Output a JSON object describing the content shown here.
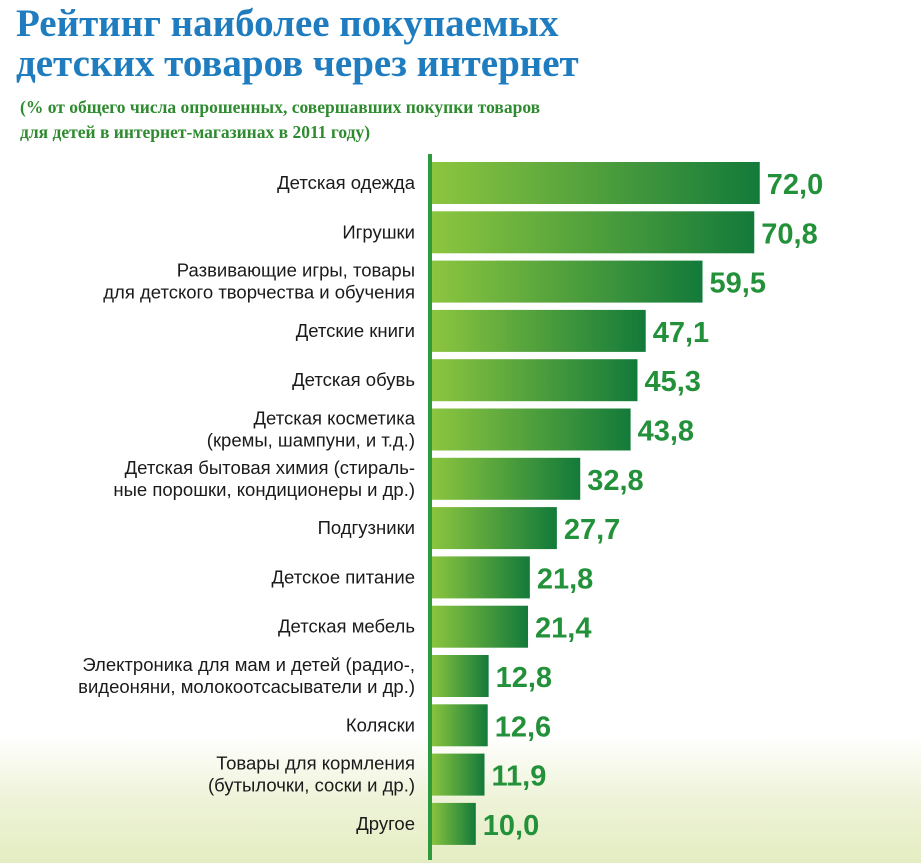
{
  "chart_data": {
    "type": "bar",
    "orientation": "horizontal",
    "title": "Рейтинг наиболее покупаемых детских товаров через интернет",
    "title_lines": [
      "Рейтинг наиболее покупаемых",
      "детских товаров через интернет"
    ],
    "subtitle_lines": [
      "(% от общего числа опрошенных, совершавших покупки товаров",
      "для детей в интернет-магазинах в 2011 году)"
    ],
    "categories": [
      [
        "Детская одежда"
      ],
      [
        "Игрушки"
      ],
      [
        "Развивающие игры, товары",
        "для детского творчества и обучения"
      ],
      [
        "Детские книги"
      ],
      [
        "Детская обувь"
      ],
      [
        "Детская косметика",
        "(кремы, шампуни,  и т.д.)"
      ],
      [
        "Детская бытовая химия (стираль-",
        "ные порошки, кондиционеры и др.)"
      ],
      [
        "Подгузники"
      ],
      [
        "Детское питание"
      ],
      [
        "Детская мебель"
      ],
      [
        "Электроника для мам и детей (радио-,",
        "видеоняни, молокоотсасыватели и др.)"
      ],
      [
        "Коляски"
      ],
      [
        "Товары для кормления",
        "(бутылочки, соски и др.)"
      ],
      [
        "Другое"
      ]
    ],
    "values": [
      72.0,
      70.8,
      59.5,
      47.1,
      45.3,
      43.8,
      32.8,
      27.7,
      21.8,
      21.4,
      12.8,
      12.6,
      11.9,
      10.0
    ],
    "value_labels": [
      "72,0",
      "70,8",
      "59,5",
      "47,1",
      "45,3",
      "43,8",
      "32,8",
      "27,7",
      "21,8",
      "21,4",
      "12,8",
      "12,6",
      "11,9",
      "10,0"
    ],
    "xlim": [
      0,
      75
    ],
    "xlabel": "",
    "ylabel": "",
    "grid": false,
    "legend": "none"
  },
  "colors": {
    "title": "#1f7dbf",
    "subtitle": "#2e8b2f",
    "bar_light": "#8dc63f",
    "bar_dark": "#137a3a",
    "axis": "#2f9a3d",
    "value_text": "#23913a"
  }
}
